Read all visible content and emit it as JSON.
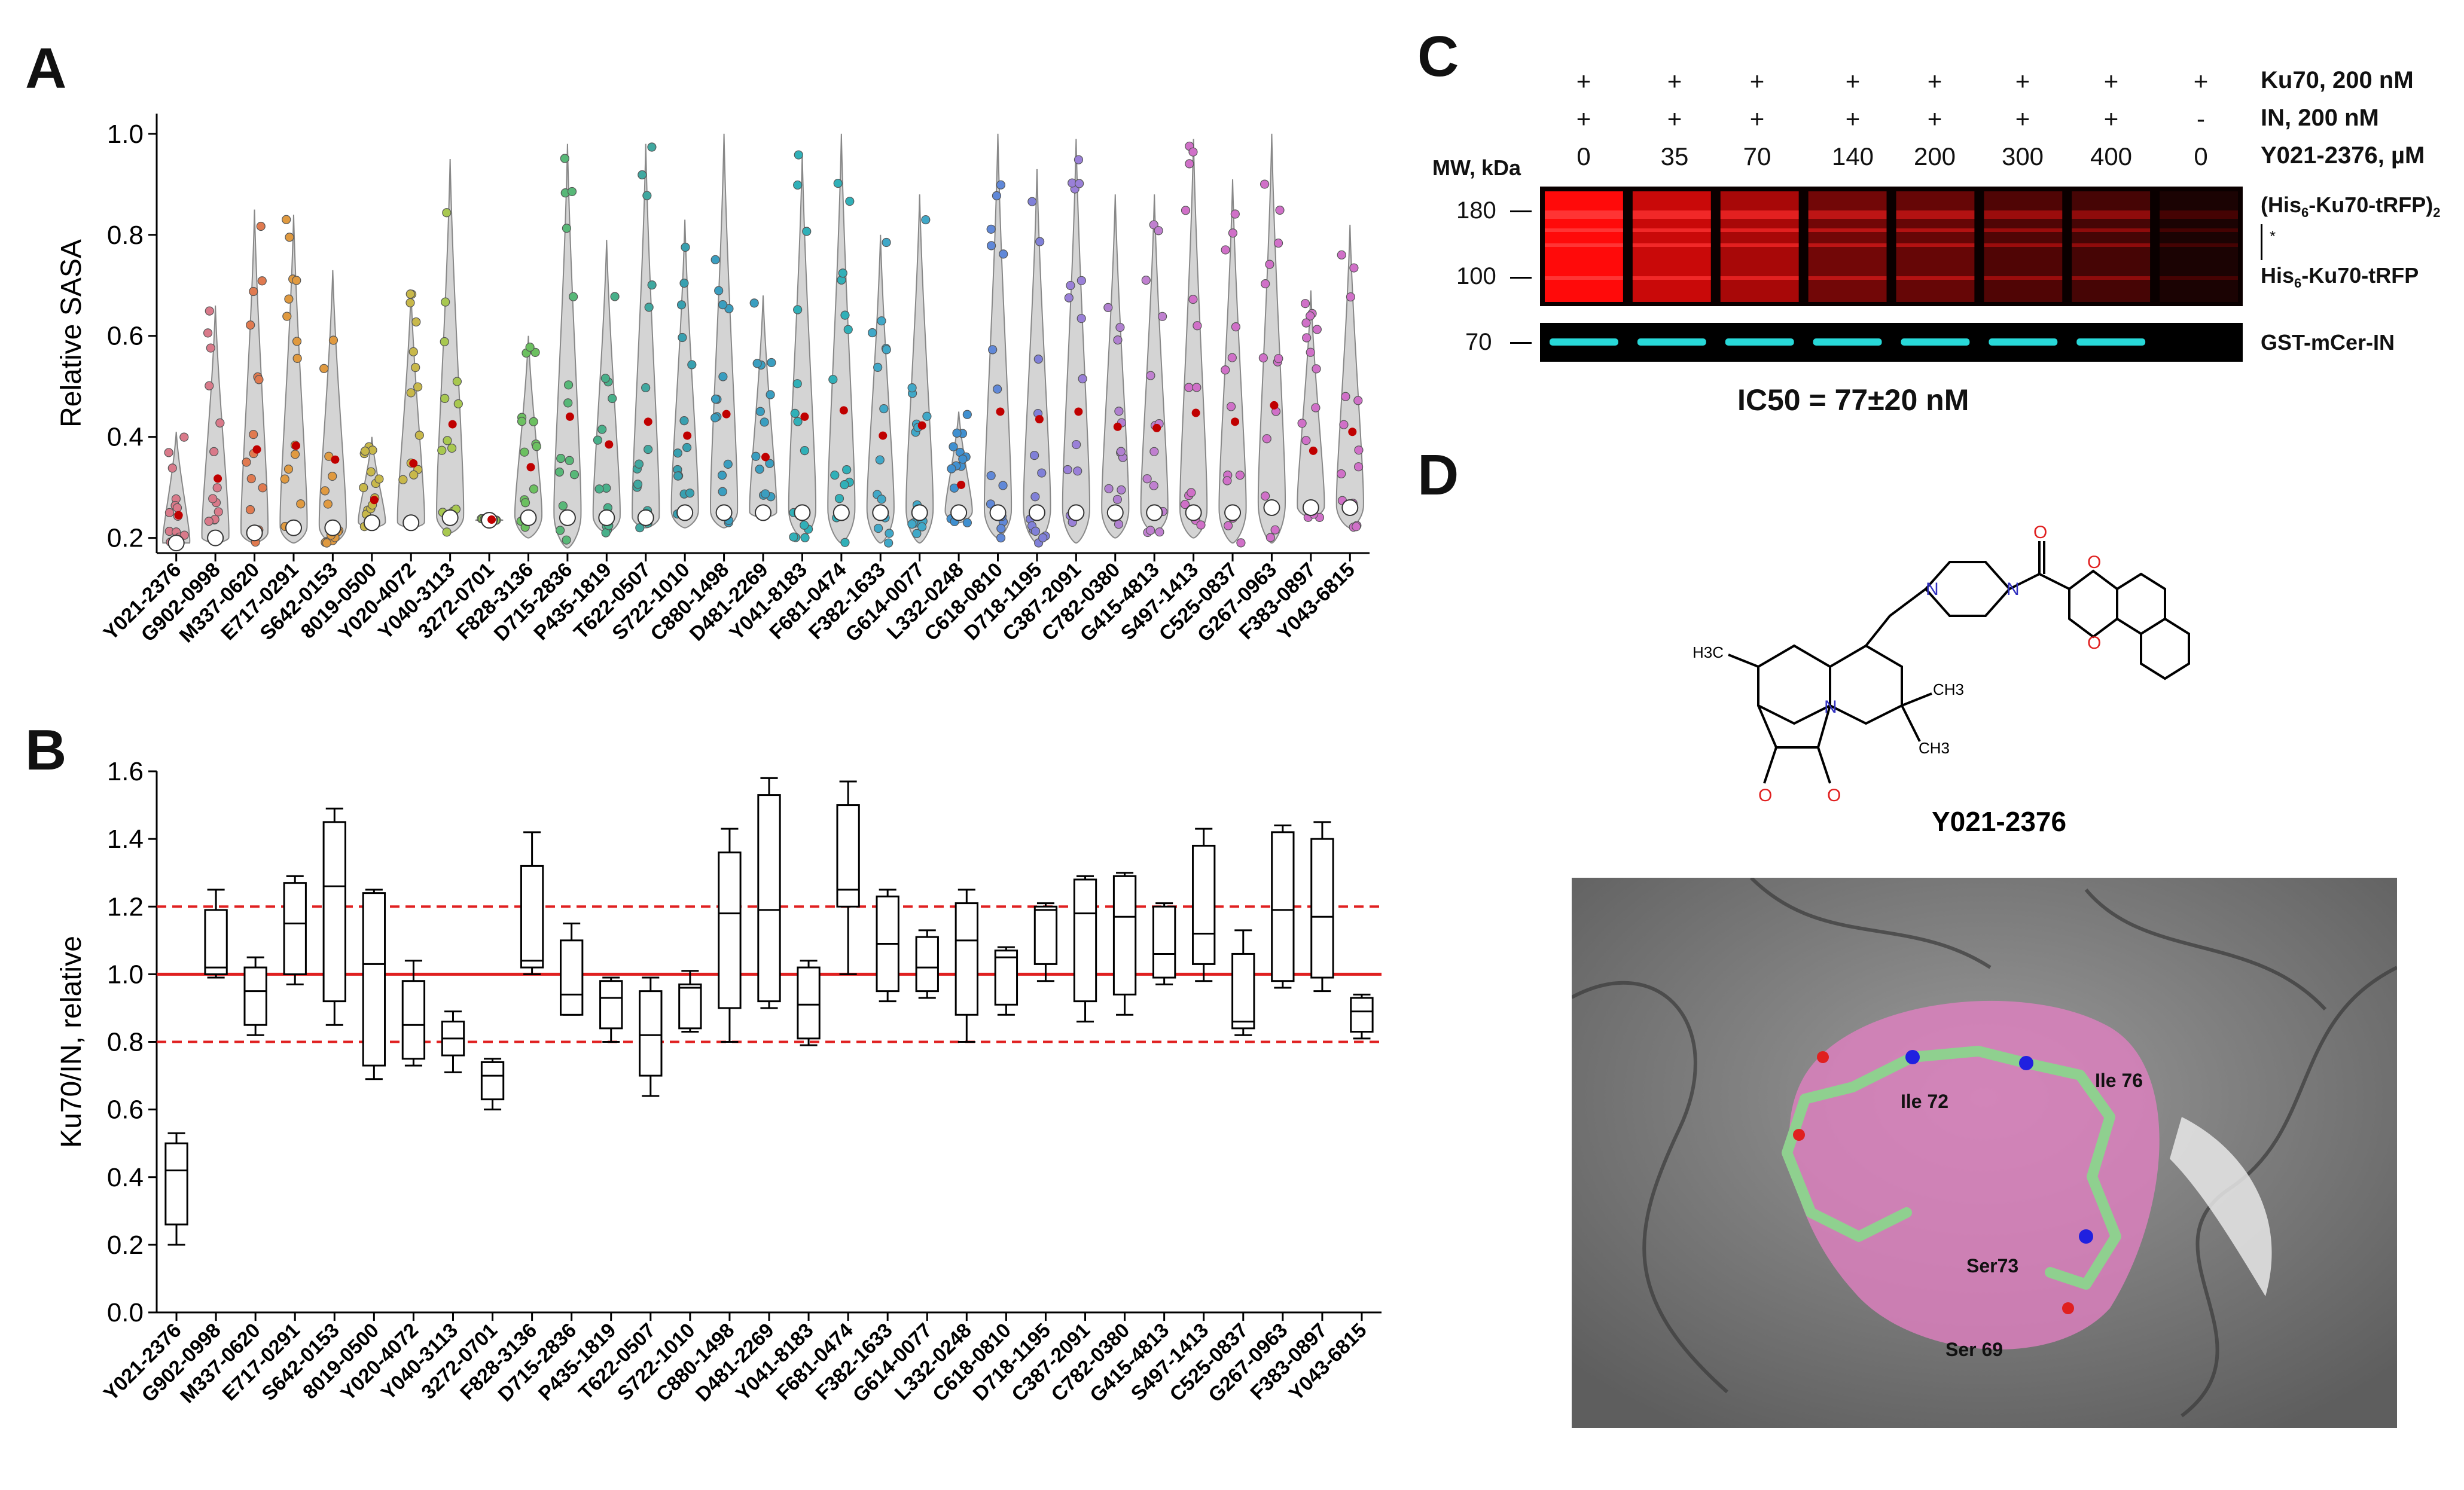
{
  "panels": {
    "a": "A",
    "b": "B",
    "c": "C",
    "d": "D"
  },
  "compounds": [
    "Y021-2376",
    "G902-0998",
    "M337-0620",
    "E717-0291",
    "S642-0153",
    "8019-0500",
    "Y020-4072",
    "Y040-3113",
    "3272-0701",
    "F828-3136",
    "D715-2836",
    "P435-1819",
    "T622-0507",
    "S722-1010",
    "C880-1498",
    "D481-2269",
    "Y041-8183",
    "F681-0474",
    "F382-1633",
    "G614-0077",
    "L332-0248",
    "C618-0810",
    "D718-1195",
    "C387-2091",
    "C782-0380",
    "G415-4813",
    "S497-1413",
    "C525-0837",
    "G267-0963",
    "F383-0897",
    "Y043-6815"
  ],
  "chart_data": [
    {
      "type": "violin",
      "panel": "A",
      "ylabel": "Relative SASA",
      "ylim": [
        0.17,
        1.04
      ],
      "yticks": [
        "0.2",
        "0.4",
        "0.6",
        "0.8",
        "1.0"
      ],
      "series_colors": [
        "#d97a8a",
        "#d97a8a",
        "#e07a50",
        "#e09a40",
        "#e09a40",
        "#c8b84a",
        "#c8b84a",
        "#a8c850",
        "#8cc858",
        "#6cc060",
        "#58b878",
        "#48b08a",
        "#40a8a0",
        "#38a0b0",
        "#3a9ec0",
        "#3a9ec0",
        "#30b0b8",
        "#30b0b8",
        "#40a8c8",
        "#40a8c8",
        "#4090d0",
        "#6088d8",
        "#8080d8",
        "#9a80d8",
        "#b080d0",
        "#c080d0",
        "#d070c8",
        "#d070c8",
        "#d070c8",
        "#d070c8",
        "#d070c8"
      ],
      "min": [
        0.19,
        0.19,
        0.19,
        0.19,
        0.19,
        0.22,
        0.22,
        0.21,
        0.235,
        0.2,
        0.18,
        0.21,
        0.22,
        0.22,
        0.22,
        0.24,
        0.2,
        0.19,
        0.19,
        0.19,
        0.23,
        0.2,
        0.19,
        0.19,
        0.2,
        0.21,
        0.2,
        0.19,
        0.19,
        0.24,
        0.22
      ],
      "median": [
        0.19,
        0.2,
        0.21,
        0.22,
        0.22,
        0.23,
        0.23,
        0.24,
        0.235,
        0.24,
        0.24,
        0.24,
        0.24,
        0.25,
        0.25,
        0.25,
        0.25,
        0.25,
        0.25,
        0.25,
        0.25,
        0.25,
        0.25,
        0.25,
        0.25,
        0.25,
        0.25,
        0.25,
        0.26,
        0.26,
        0.26
      ],
      "max": [
        0.41,
        0.66,
        0.85,
        0.84,
        0.73,
        0.4,
        0.69,
        0.95,
        0.24,
        0.6,
        0.98,
        0.79,
        0.98,
        0.83,
        1.0,
        0.68,
        0.96,
        1.0,
        0.8,
        0.88,
        0.45,
        1.0,
        0.93,
        0.99,
        0.88,
        0.88,
        0.99,
        0.91,
        1.0,
        0.69,
        0.82
      ]
    },
    {
      "type": "box",
      "panel": "B",
      "ylabel": "Ku70/IN, relative",
      "ylim": [
        0,
        1.6
      ],
      "yticks": [
        "0.0",
        "0.2",
        "0.4",
        "0.6",
        "0.8",
        "1.0",
        "1.2",
        "1.4",
        "1.6"
      ],
      "reference_lines": [
        0.8,
        1.0,
        1.2
      ],
      "min": [
        0.2,
        0.99,
        0.82,
        0.97,
        0.85,
        0.69,
        0.73,
        0.71,
        0.6,
        1.0,
        0.88,
        0.8,
        0.64,
        0.83,
        0.8,
        0.9,
        0.79,
        1.0,
        0.92,
        0.93,
        0.8,
        0.88,
        0.98,
        0.86,
        0.88,
        0.97,
        0.98,
        0.82,
        0.96,
        0.95,
        0.81
      ],
      "q1": [
        0.26,
        1.0,
        0.85,
        1.0,
        0.92,
        0.73,
        0.75,
        0.76,
        0.63,
        1.02,
        0.88,
        0.84,
        0.7,
        0.84,
        0.9,
        0.92,
        0.81,
        1.2,
        0.95,
        0.95,
        0.88,
        0.91,
        1.03,
        0.92,
        0.94,
        0.99,
        1.03,
        0.84,
        0.98,
        0.99,
        0.83
      ],
      "median": [
        0.42,
        1.02,
        0.95,
        1.15,
        1.26,
        1.03,
        0.85,
        0.81,
        0.7,
        1.04,
        0.94,
        0.93,
        0.82,
        0.96,
        1.18,
        1.19,
        0.91,
        1.25,
        1.09,
        1.02,
        1.1,
        1.05,
        1.19,
        1.18,
        1.17,
        1.06,
        1.12,
        0.86,
        1.19,
        1.17,
        0.89
      ],
      "q3": [
        0.5,
        1.19,
        1.02,
        1.27,
        1.45,
        1.24,
        0.98,
        0.86,
        0.74,
        1.32,
        1.1,
        0.98,
        0.95,
        0.97,
        1.36,
        1.53,
        1.02,
        1.5,
        1.23,
        1.11,
        1.21,
        1.07,
        1.2,
        1.28,
        1.29,
        1.2,
        1.38,
        1.06,
        1.42,
        1.4,
        0.93
      ],
      "max": [
        0.53,
        1.25,
        1.05,
        1.29,
        1.49,
        1.25,
        1.04,
        0.89,
        0.75,
        1.42,
        1.15,
        0.99,
        0.99,
        1.01,
        1.43,
        1.58,
        1.04,
        1.57,
        1.25,
        1.13,
        1.25,
        1.08,
        1.21,
        1.29,
        1.3,
        1.21,
        1.43,
        1.13,
        1.44,
        1.45,
        0.94
      ]
    }
  ],
  "gel": {
    "row_labels": [
      "Ku70, 200 nM",
      "IN, 200 nM",
      "Y021-2376, µM"
    ],
    "ku70_signs": [
      "+",
      "+",
      "+",
      "+",
      "+",
      "+",
      "+",
      "+"
    ],
    "in_signs": [
      "+",
      "+",
      "+",
      "+",
      "+",
      "+",
      "+",
      "-"
    ],
    "concentrations": [
      "0",
      "35",
      "70",
      "140",
      "200",
      "300",
      "400",
      "0"
    ],
    "mw_header": "MW, kDa",
    "mw_markers": [
      "180",
      "100",
      "70"
    ],
    "band_label_dimer_pre": "(His",
    "band_label_sub": "6",
    "band_label_dimer_mid": "-Ku70-tRFP)",
    "band_label_dimer_sub2": "2",
    "band_label_star": "*",
    "band_label_mono_pre": "His",
    "band_label_mono_post": "-Ku70-tRFP",
    "band_label_in": "GST-mCer-IN",
    "ic50": "IC50 = 77±20 nM",
    "red_intensity": [
      1.0,
      0.85,
      0.75,
      0.55,
      0.5,
      0.4,
      0.35,
      0.05
    ],
    "cyan_present": [
      1,
      1,
      1,
      1,
      1,
      1,
      1,
      0
    ]
  },
  "structure": {
    "compound_label": "Y021-2376",
    "atom_labels": {
      "n1": "N",
      "n2": "N",
      "n3": "N",
      "o1": "O",
      "o2": "O",
      "o3": "O",
      "o4": "O",
      "o5": "O"
    },
    "methyl_labels": {
      "h3c": "H3C",
      "ch3a": "CH3",
      "ch3b": "CH3"
    },
    "residues": [
      "Ile 72",
      "Ile 76",
      "Ser73",
      "Ser 69"
    ]
  }
}
